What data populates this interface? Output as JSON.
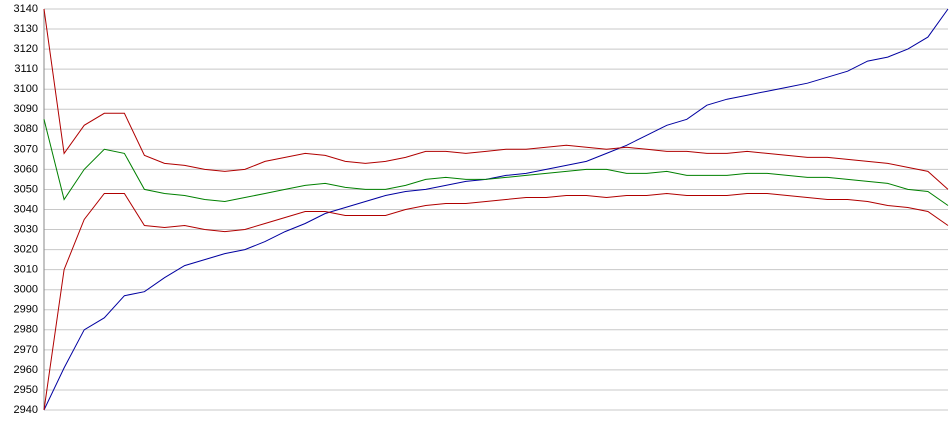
{
  "chart_data": {
    "type": "line",
    "ylim": [
      2940,
      3140
    ],
    "yticks": [
      2940,
      2950,
      2960,
      2970,
      2980,
      2990,
      3000,
      3010,
      3020,
      3030,
      3040,
      3050,
      3060,
      3070,
      3080,
      3090,
      3100,
      3110,
      3120,
      3130,
      3140
    ],
    "grid": true,
    "series": [
      {
        "color": "#0000a0",
        "values": [
          2940,
          2961,
          2980,
          2986,
          2997,
          2999,
          3006,
          3012,
          3015,
          3018,
          3020,
          3024,
          3029,
          3033,
          3038,
          3041,
          3044,
          3047,
          3049,
          3050,
          3052,
          3054,
          3055,
          3057,
          3058,
          3060,
          3062,
          3064,
          3068,
          3072,
          3077,
          3082,
          3085,
          3092,
          3095,
          3097,
          3099,
          3101,
          3103,
          3106,
          3109,
          3114,
          3116,
          3120,
          3126,
          3140
        ]
      },
      {
        "color": "#008000",
        "values": [
          3085,
          3045,
          3060,
          3070,
          3068,
          3050,
          3048,
          3047,
          3045,
          3044,
          3046,
          3048,
          3050,
          3052,
          3053,
          3051,
          3050,
          3050,
          3052,
          3055,
          3056,
          3055,
          3055,
          3056,
          3057,
          3058,
          3059,
          3060,
          3060,
          3058,
          3058,
          3059,
          3057,
          3057,
          3057,
          3058,
          3058,
          3057,
          3056,
          3056,
          3055,
          3054,
          3053,
          3050,
          3049,
          3042
        ]
      },
      {
        "color": "#b00000",
        "values": [
          3140,
          3068,
          3082,
          3088,
          3088,
          3067,
          3063,
          3062,
          3060,
          3059,
          3060,
          3064,
          3066,
          3068,
          3067,
          3064,
          3063,
          3064,
          3066,
          3069,
          3069,
          3068,
          3069,
          3070,
          3070,
          3071,
          3072,
          3071,
          3070,
          3071,
          3070,
          3069,
          3069,
          3068,
          3068,
          3069,
          3068,
          3067,
          3066,
          3066,
          3065,
          3064,
          3063,
          3061,
          3059,
          3050
        ]
      },
      {
        "color": "#b00000",
        "values": [
          2940,
          3010,
          3035,
          3048,
          3048,
          3032,
          3031,
          3032,
          3030,
          3029,
          3030,
          3033,
          3036,
          3039,
          3039,
          3037,
          3037,
          3037,
          3040,
          3042,
          3043,
          3043,
          3044,
          3045,
          3046,
          3046,
          3047,
          3047,
          3046,
          3047,
          3047,
          3048,
          3047,
          3047,
          3047,
          3048,
          3048,
          3047,
          3046,
          3045,
          3045,
          3044,
          3042,
          3041,
          3039,
          3032
        ]
      }
    ]
  }
}
